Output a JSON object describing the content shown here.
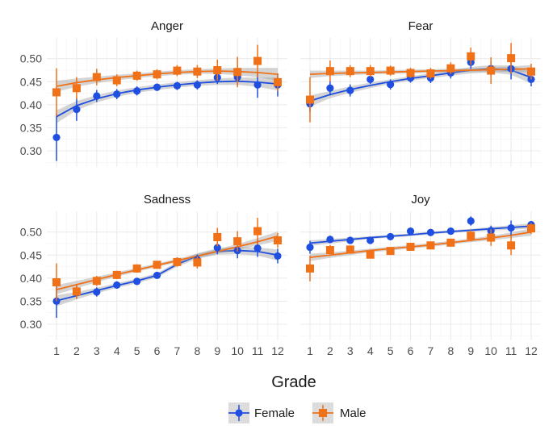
{
  "chart_data": {
    "type": "scatter",
    "xlabel": "Grade",
    "ylabel": "",
    "x": [
      1,
      2,
      3,
      4,
      5,
      6,
      7,
      8,
      9,
      10,
      11,
      12
    ],
    "x_ticks": [
      "1",
      "2",
      "3",
      "4",
      "5",
      "6",
      "7",
      "8",
      "9",
      "10",
      "11",
      "12"
    ],
    "ylim": [
      0.265,
      0.545
    ],
    "y_ticks": [
      "0.30",
      "0.35",
      "0.40",
      "0.45",
      "0.50"
    ],
    "grid": true,
    "legend": {
      "position": "bottom",
      "entries": [
        "Female",
        "Male"
      ]
    },
    "series_colors": {
      "Female": "#1f4fe0",
      "Male": "#f07118"
    },
    "ribbon_color": "#9a9a9a",
    "panels": [
      {
        "title": "Anger",
        "series": [
          {
            "name": "Female",
            "values": [
              0.329,
              0.39,
              0.419,
              0.423,
              0.43,
              0.438,
              0.441,
              0.443,
              0.459,
              0.46,
              0.443,
              0.443
            ],
            "ci_low": [
              0.278,
              0.365,
              0.406,
              0.412,
              0.42,
              0.43,
              0.432,
              0.433,
              0.445,
              0.443,
              0.415,
              0.418
            ],
            "ci_high": [
              0.38,
              0.415,
              0.432,
              0.434,
              0.44,
              0.446,
              0.45,
              0.453,
              0.473,
              0.477,
              0.471,
              0.468
            ],
            "fit": [
              0.374,
              0.398,
              0.413,
              0.424,
              0.432,
              0.438,
              0.443,
              0.447,
              0.45,
              0.451,
              0.449,
              0.445
            ],
            "band": [
              0.014,
              0.01,
              0.008,
              0.007,
              0.006,
              0.006,
              0.006,
              0.006,
              0.007,
              0.008,
              0.01,
              0.014
            ]
          },
          {
            "name": "Male",
            "values": [
              0.427,
              0.436,
              0.46,
              0.453,
              0.463,
              0.466,
              0.474,
              0.472,
              0.475,
              0.471,
              0.495,
              0.449
            ],
            "ci_low": [
              0.375,
              0.412,
              0.442,
              0.44,
              0.452,
              0.455,
              0.462,
              0.458,
              0.452,
              0.438,
              0.46,
              0.43
            ],
            "ci_high": [
              0.479,
              0.46,
              0.478,
              0.466,
              0.474,
              0.477,
              0.486,
              0.486,
              0.498,
              0.504,
              0.53,
              0.468
            ],
            "fit": [
              0.44,
              0.448,
              0.454,
              0.459,
              0.463,
              0.467,
              0.47,
              0.472,
              0.473,
              0.472,
              0.47,
              0.466
            ],
            "band": [
              0.012,
              0.009,
              0.007,
              0.006,
              0.005,
              0.005,
              0.005,
              0.005,
              0.006,
              0.008,
              0.01,
              0.014
            ]
          }
        ]
      },
      {
        "title": "Fear",
        "series": [
          {
            "name": "Female",
            "values": [
              0.402,
              0.436,
              0.431,
              0.455,
              0.444,
              0.458,
              0.458,
              0.469,
              0.492,
              0.478,
              0.478,
              0.455
            ],
            "ci_low": [
              0.385,
              0.42,
              0.418,
              0.445,
              0.433,
              0.448,
              0.447,
              0.457,
              0.478,
              0.462,
              0.455,
              0.44
            ],
            "ci_high": [
              0.419,
              0.452,
              0.444,
              0.465,
              0.455,
              0.468,
              0.469,
              0.481,
              0.506,
              0.494,
              0.501,
              0.47
            ],
            "fit": [
              0.408,
              0.422,
              0.433,
              0.442,
              0.45,
              0.457,
              0.463,
              0.469,
              0.475,
              0.478,
              0.475,
              0.459
            ],
            "band": [
              0.012,
              0.008,
              0.007,
              0.006,
              0.005,
              0.005,
              0.005,
              0.006,
              0.007,
              0.008,
              0.01,
              0.013
            ]
          },
          {
            "name": "Male",
            "values": [
              0.411,
              0.473,
              0.473,
              0.473,
              0.474,
              0.469,
              0.468,
              0.479,
              0.505,
              0.474,
              0.501,
              0.472
            ],
            "ci_low": [
              0.362,
              0.45,
              0.46,
              0.46,
              0.463,
              0.458,
              0.456,
              0.466,
              0.486,
              0.445,
              0.468,
              0.455
            ],
            "ci_high": [
              0.46,
              0.496,
              0.486,
              0.486,
              0.485,
              0.48,
              0.48,
              0.492,
              0.524,
              0.503,
              0.534,
              0.489
            ],
            "fit": [
              0.466,
              0.468,
              0.469,
              0.47,
              0.471,
              0.472,
              0.473,
              0.474,
              0.475,
              0.476,
              0.477,
              0.478
            ],
            "band": [
              0.008,
              0.006,
              0.005,
              0.004,
              0.004,
              0.004,
              0.004,
              0.004,
              0.004,
              0.005,
              0.006,
              0.008
            ]
          }
        ]
      },
      {
        "title": "Sadness",
        "series": [
          {
            "name": "Female",
            "values": [
              0.35,
              0.37,
              0.37,
              0.385,
              0.393,
              0.406,
              0.436,
              0.44,
              0.466,
              0.46,
              0.465,
              0.448
            ],
            "ci_low": [
              0.314,
              0.356,
              0.36,
              0.377,
              0.386,
              0.399,
              0.427,
              0.429,
              0.452,
              0.443,
              0.446,
              0.432
            ],
            "ci_high": [
              0.386,
              0.384,
              0.38,
              0.393,
              0.4,
              0.413,
              0.445,
              0.451,
              0.48,
              0.477,
              0.484,
              0.464
            ],
            "fit": [
              0.351,
              0.362,
              0.373,
              0.384,
              0.394,
              0.406,
              0.43,
              0.448,
              0.458,
              0.46,
              0.458,
              0.45
            ],
            "band": [
              0.012,
              0.008,
              0.006,
              0.005,
              0.005,
              0.005,
              0.005,
              0.006,
              0.007,
              0.008,
              0.009,
              0.012
            ]
          },
          {
            "name": "Male",
            "values": [
              0.391,
              0.371,
              0.394,
              0.407,
              0.421,
              0.429,
              0.435,
              0.434,
              0.489,
              0.48,
              0.502,
              0.482
            ],
            "ci_low": [
              0.35,
              0.355,
              0.383,
              0.398,
              0.412,
              0.421,
              0.425,
              0.421,
              0.469,
              0.458,
              0.473,
              0.466
            ],
            "ci_high": [
              0.432,
              0.387,
              0.405,
              0.416,
              0.43,
              0.437,
              0.445,
              0.447,
              0.509,
              0.502,
              0.531,
              0.498
            ],
            "fit": [
              0.375,
              0.386,
              0.397,
              0.408,
              0.418,
              0.428,
              0.438,
              0.448,
              0.458,
              0.468,
              0.479,
              0.491
            ],
            "band": [
              0.01,
              0.008,
              0.006,
              0.005,
              0.004,
              0.004,
              0.004,
              0.005,
              0.005,
              0.006,
              0.008,
              0.01
            ]
          }
        ]
      },
      {
        "title": "Joy",
        "series": [
          {
            "name": "Female",
            "values": [
              0.467,
              0.484,
              0.482,
              0.482,
              0.49,
              0.502,
              0.499,
              0.502,
              0.524,
              0.503,
              0.509,
              0.516
            ],
            "ci_low": [
              0.453,
              0.476,
              0.475,
              0.475,
              0.484,
              0.496,
              0.493,
              0.495,
              0.514,
              0.492,
              0.493,
              0.508
            ],
            "ci_high": [
              0.481,
              0.492,
              0.489,
              0.489,
              0.496,
              0.508,
              0.505,
              0.509,
              0.534,
              0.514,
              0.525,
              0.524
            ],
            "fit": [
              0.476,
              0.48,
              0.484,
              0.488,
              0.491,
              0.494,
              0.498,
              0.501,
              0.504,
              0.507,
              0.51,
              0.513
            ],
            "band": [
              0.006,
              0.005,
              0.004,
              0.003,
              0.003,
              0.003,
              0.003,
              0.003,
              0.003,
              0.004,
              0.005,
              0.006
            ]
          },
          {
            "name": "Male",
            "values": [
              0.421,
              0.461,
              0.462,
              0.451,
              0.459,
              0.468,
              0.471,
              0.477,
              0.492,
              0.488,
              0.471,
              0.508
            ],
            "ci_low": [
              0.393,
              0.45,
              0.453,
              0.443,
              0.452,
              0.461,
              0.463,
              0.469,
              0.48,
              0.47,
              0.45,
              0.496
            ],
            "ci_high": [
              0.449,
              0.472,
              0.471,
              0.459,
              0.466,
              0.475,
              0.479,
              0.485,
              0.504,
              0.506,
              0.492,
              0.52
            ],
            "fit": [
              0.445,
              0.45,
              0.455,
              0.46,
              0.464,
              0.468,
              0.472,
              0.477,
              0.482,
              0.487,
              0.493,
              0.5
            ],
            "band": [
              0.008,
              0.006,
              0.005,
              0.004,
              0.004,
              0.004,
              0.004,
              0.004,
              0.004,
              0.005,
              0.006,
              0.008
            ]
          }
        ]
      }
    ]
  }
}
